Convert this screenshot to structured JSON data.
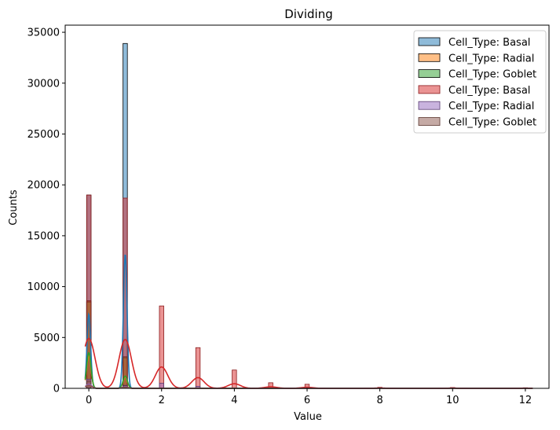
{
  "chart_data": {
    "type": "histogram",
    "title": "Dividing",
    "xlabel": "Value",
    "ylabel": "Counts",
    "xlim": [
      -0.65,
      12.65
    ],
    "ylim": [
      0,
      35700
    ],
    "x_ticks": [
      0,
      2,
      4,
      6,
      8,
      10,
      12
    ],
    "y_ticks": [
      0,
      5000,
      10000,
      15000,
      20000,
      25000,
      30000,
      35000
    ],
    "grid": false,
    "legend_position": "upper right",
    "bin_width": 0.12,
    "series": [
      {
        "name": "Cell_Type: Basal",
        "color": "#1f77b4",
        "edge": "black",
        "bars": [
          {
            "x": 0,
            "y": 19000
          },
          {
            "x": 1,
            "y": 33900
          }
        ],
        "kde_peaks": [
          {
            "x": 0,
            "y": 7300
          },
          {
            "x": 1,
            "y": 13200
          }
        ],
        "kde_width": 0.05
      },
      {
        "name": "Cell_Type: Radial",
        "color": "#ff7f0e",
        "edge": "black",
        "bars": [
          {
            "x": 0,
            "y": 8600
          },
          {
            "x": 1,
            "y": 3000
          }
        ],
        "kde_peaks": [
          {
            "x": 0,
            "y": 3200
          },
          {
            "x": 1,
            "y": 1100
          }
        ],
        "kde_width": 0.06
      },
      {
        "name": "Cell_Type: Goblet",
        "color": "#2ca02c",
        "edge": "black",
        "bars": [
          {
            "x": 0,
            "y": 8500
          },
          {
            "x": 1,
            "y": 3100
          }
        ],
        "kde_peaks": [
          {
            "x": 0,
            "y": 3500
          },
          {
            "x": 1,
            "y": 1200
          }
        ],
        "kde_width": 0.06
      },
      {
        "name": "Cell_Type: Basal",
        "color": "#d62728",
        "edge": "#8a1a1b",
        "bars": [
          {
            "x": 0,
            "y": 19000
          },
          {
            "x": 1,
            "y": 18700
          },
          {
            "x": 2,
            "y": 8100
          },
          {
            "x": 3,
            "y": 4000
          },
          {
            "x": 4,
            "y": 1800
          },
          {
            "x": 5,
            "y": 550
          },
          {
            "x": 6,
            "y": 400
          },
          {
            "x": 8,
            "y": 100
          },
          {
            "x": 10,
            "y": 80
          },
          {
            "x": 12,
            "y": 60
          }
        ],
        "kde_peaks": [
          {
            "x": 0,
            "y": 4900
          },
          {
            "x": 1,
            "y": 4800
          },
          {
            "x": 2,
            "y": 2100
          },
          {
            "x": 3,
            "y": 1050
          },
          {
            "x": 4,
            "y": 450
          },
          {
            "x": 5,
            "y": 150
          },
          {
            "x": 6,
            "y": 100
          },
          {
            "x": 8,
            "y": 30
          },
          {
            "x": 10,
            "y": 25
          },
          {
            "x": 12,
            "y": 20
          }
        ],
        "kde_width": 0.17
      },
      {
        "name": "Cell_Type: Radial",
        "color": "#9467bd",
        "edge": "#5a3e73",
        "bars": [
          {
            "x": 0,
            "y": 900
          },
          {
            "x": 1,
            "y": 300
          },
          {
            "x": 2,
            "y": 500
          },
          {
            "x": 3,
            "y": 200
          }
        ],
        "kde_peaks": [
          {
            "x": 0,
            "y": 400
          },
          {
            "x": 1,
            "y": 150
          }
        ],
        "kde_width": 0.08
      },
      {
        "name": "Cell_Type: Goblet",
        "color": "#8c564b",
        "edge": "#5a362f",
        "bars": [
          {
            "x": 0,
            "y": 700
          },
          {
            "x": 1,
            "y": 250
          }
        ],
        "kde_peaks": [
          {
            "x": 0,
            "y": 300
          },
          {
            "x": 1,
            "y": 100
          }
        ],
        "kde_width": 0.08
      }
    ]
  }
}
